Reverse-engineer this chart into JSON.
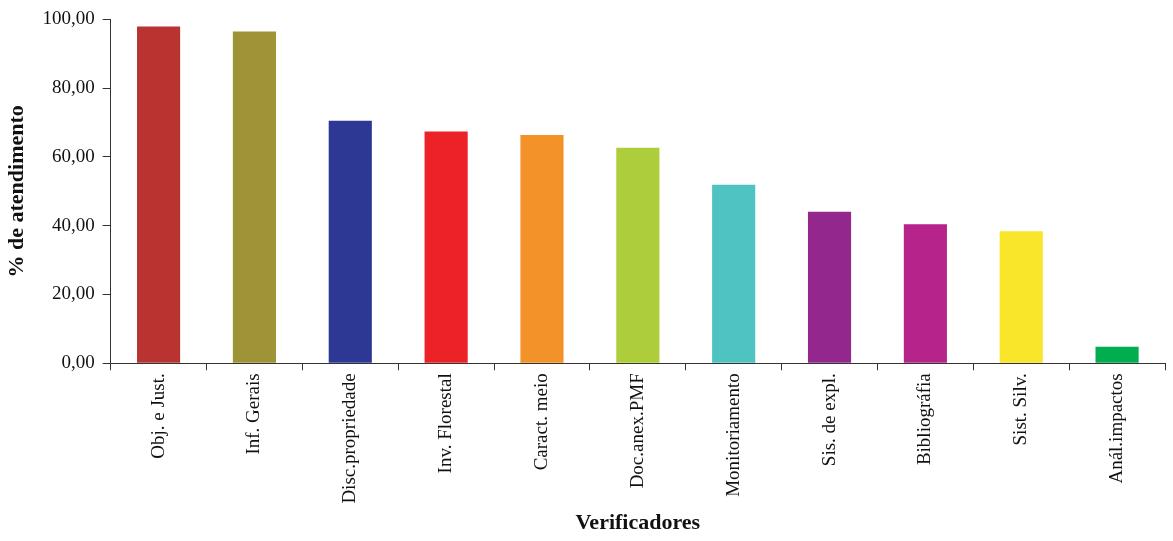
{
  "chart_data": {
    "type": "bar",
    "xlabel": "Verificadores",
    "ylabel": "% de atendimento",
    "categories": [
      "Obj. e Just.",
      "Inf. Gerais",
      "Disc.propriedade",
      "Inv. Florestal",
      "Caract. meio",
      "Doc.anex.PMF",
      "Monitoriamento",
      "Sis. de expl.",
      "Bibliográfia",
      "Sist. Silv.",
      "Anál.impactos"
    ],
    "values": [
      97.9,
      96.5,
      70.5,
      67.4,
      66.4,
      62.7,
      51.9,
      44.1,
      40.4,
      38.4,
      4.8
    ],
    "colors": [
      "#b93431",
      "#9f9337",
      "#2d3794",
      "#ed2128",
      "#f29229",
      "#aecd3b",
      "#4fc3c2",
      "#93278d",
      "#b5238b",
      "#f9e52a",
      "#00ae4f"
    ],
    "ylim": [
      0,
      100
    ],
    "yticks": [
      {
        "value": 0,
        "label": "0,00"
      },
      {
        "value": 20,
        "label": "20,00"
      },
      {
        "value": 40,
        "label": "40,00"
      },
      {
        "value": 60,
        "label": "60,00"
      },
      {
        "value": 80,
        "label": "80,00"
      },
      {
        "value": 100,
        "label": "100,00"
      }
    ],
    "grid": false,
    "legend": false
  }
}
